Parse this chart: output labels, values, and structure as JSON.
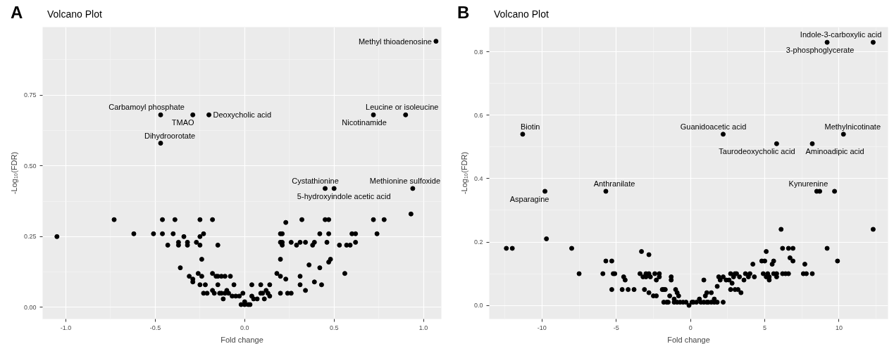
{
  "chart_data": [
    {
      "type": "scatter",
      "title": "Volcano Plot",
      "xlabel": "Fold change",
      "ylabel": "-Log₁₀(FDR)",
      "marker": "circle",
      "grid": true,
      "xlim": [
        -1.13,
        1.1
      ],
      "ylim": [
        -0.041,
        0.99
      ],
      "xticks": [
        {
          "value": -1.0,
          "label": "-1.0"
        },
        {
          "value": -0.5,
          "label": "-0.5"
        },
        {
          "value": 0.0,
          "label": "0.0"
        },
        {
          "value": 0.5,
          "label": "0.5"
        },
        {
          "value": 1.0,
          "label": "1.0"
        }
      ],
      "yticks": [
        {
          "value": 0.0,
          "label": "0.00"
        },
        {
          "value": 0.25,
          "label": "0.25"
        },
        {
          "value": 0.5,
          "label": "0.50"
        },
        {
          "value": 0.75,
          "label": "0.75"
        }
      ],
      "series": [
        {
          "color": "#000000",
          "x": [
            1.07,
            -0.47,
            -0.29,
            -0.2,
            -0.47,
            0.9,
            0.72,
            0.45,
            0.5,
            0.94,
            -1.05,
            -0.73,
            -0.62,
            -0.51,
            -0.46,
            -0.39,
            -0.46,
            -0.4,
            -0.43,
            -0.37,
            -0.37,
            -0.34,
            -0.32,
            -0.32,
            -0.36,
            -0.27,
            -0.25,
            -0.18,
            -0.25,
            -0.23,
            -0.25,
            -0.15,
            -0.24,
            -0.31,
            -0.29,
            -0.29,
            -0.26,
            -0.24,
            -0.25,
            -0.22,
            -0.23,
            -0.21,
            -0.18,
            -0.18,
            -0.16,
            -0.15,
            -0.13,
            -0.11,
            -0.15,
            -0.17,
            -0.14,
            -0.12,
            -0.13,
            -0.11,
            -0.1,
            -0.08,
            -0.06,
            -0.09,
            -0.07,
            -0.05,
            -0.03,
            -0.01,
            -0.02,
            0.0,
            0.02,
            0.03,
            0.0,
            0.04,
            0.04,
            0.05,
            0.07,
            0.09,
            0.09,
            0.1,
            0.11,
            0.12,
            0.13,
            0.14,
            0.14,
            0.18,
            0.2,
            0.2,
            0.2,
            0.21,
            0.21,
            0.21,
            0.23,
            0.2,
            0.23,
            0.2,
            0.24,
            0.26,
            0.26,
            0.29,
            0.31,
            0.32,
            0.31,
            0.31,
            0.34,
            0.34,
            0.36,
            0.38,
            0.39,
            0.39,
            0.42,
            0.42,
            0.43,
            0.45,
            0.47,
            0.46,
            0.47,
            0.47,
            0.48,
            0.53,
            0.56,
            0.57,
            0.59,
            0.6,
            0.62,
            0.62,
            0.72,
            0.74,
            0.78,
            0.93
          ],
          "values": [
            0.94,
            0.68,
            0.68,
            0.68,
            0.58,
            0.68,
            0.68,
            0.42,
            0.42,
            0.42,
            0.25,
            0.31,
            0.26,
            0.26,
            0.31,
            0.31,
            0.26,
            0.26,
            0.22,
            0.23,
            0.22,
            0.25,
            0.22,
            0.23,
            0.14,
            0.23,
            0.31,
            0.31,
            0.25,
            0.26,
            0.22,
            0.22,
            0.17,
            0.11,
            0.1,
            0.09,
            0.12,
            0.11,
            0.08,
            0.08,
            0.05,
            0.05,
            0.06,
            0.12,
            0.11,
            0.11,
            0.11,
            0.11,
            0.08,
            0.05,
            0.05,
            0.03,
            0.05,
            0.05,
            0.06,
            0.11,
            0.08,
            0.05,
            0.04,
            0.04,
            0.04,
            0.05,
            0.01,
            0.01,
            0.01,
            0.01,
            0.02,
            0.08,
            0.04,
            0.03,
            0.03,
            0.08,
            0.05,
            0.05,
            0.03,
            0.06,
            0.05,
            0.08,
            0.04,
            0.12,
            0.17,
            0.23,
            0.26,
            0.26,
            0.22,
            0.23,
            0.3,
            0.11,
            0.1,
            0.05,
            0.05,
            0.05,
            0.23,
            0.22,
            0.23,
            0.31,
            0.11,
            0.08,
            0.23,
            0.06,
            0.15,
            0.22,
            0.23,
            0.09,
            0.14,
            0.26,
            0.08,
            0.31,
            0.31,
            0.23,
            0.26,
            0.16,
            0.17,
            0.22,
            0.12,
            0.22,
            0.22,
            0.26,
            0.26,
            0.23,
            0.31,
            0.26,
            0.31,
            0.33
          ]
        }
      ],
      "annotations": [
        {
          "text": "Methyl thioadenosine",
          "x": 1.07,
          "y": 0.94
        },
        {
          "text": "Carbamoyl phosphate",
          "x": -0.47,
          "y": 0.68
        },
        {
          "text": "TMAO",
          "x": -0.29,
          "y": 0.68
        },
        {
          "text": "Deoxycholic acid",
          "x": -0.2,
          "y": 0.68
        },
        {
          "text": "Dihydroorotate",
          "x": -0.47,
          "y": 0.58
        },
        {
          "text": "Leucine or isoleucine",
          "x": 0.9,
          "y": 0.68
        },
        {
          "text": "Nicotinamide",
          "x": 0.72,
          "y": 0.68
        },
        {
          "text": "Cystathionine",
          "x": 0.45,
          "y": 0.42
        },
        {
          "text": "5-hydroxyindole acetic acid",
          "x": 0.5,
          "y": 0.42
        },
        {
          "text": "Methionine sulfoxide",
          "x": 0.94,
          "y": 0.42
        },
        "A"
      ]
    },
    {
      "type": "scatter",
      "title": "Volcano Plot",
      "xlabel": "Fold change",
      "ylabel": "-Log₁₀(FDR)",
      "marker": "circle",
      "grid": true,
      "xlim": [
        -13.55,
        13.3
      ],
      "ylim": [
        -0.043,
        0.878
      ],
      "xticks": [
        -10,
        -5,
        0,
        5,
        10
      ],
      "yticks": [
        {
          "value": 0.0,
          "label": "0.0"
        },
        {
          "value": 0.2,
          "label": "0.2"
        },
        {
          "value": 0.4,
          "label": "0.4"
        },
        {
          "value": 0.6,
          "label": "0.6"
        },
        {
          "value": 0.8,
          "label": "0.8"
        }
      ],
      "series": [
        {
          "color": "#000000",
          "x": [
            12.3,
            9.2,
            -11.3,
            2.2,
            5.8,
            8.2,
            10.3,
            -9.8,
            -5.7,
            8.5,
            8.7,
            9.7,
            -12.4,
            -12.0,
            -9.7,
            -8.0,
            -7.5,
            -5.9,
            -5.7,
            -5.3,
            -5.3,
            -5.2,
            -5.1,
            -4.6,
            -4.5,
            -4.4,
            -4.2,
            -3.8,
            -3.4,
            -3.3,
            -3.2,
            -3.1,
            -3.0,
            -3.0,
            -2.8,
            -2.8,
            -2.8,
            -2.7,
            -2.5,
            -2.4,
            -2.3,
            -2.3,
            -2.1,
            -2.1,
            -1.9,
            -1.8,
            -1.7,
            -1.8,
            -1.5,
            -1.6,
            -1.4,
            -1.3,
            -1.3,
            -1.1,
            -1.1,
            -1.0,
            -0.9,
            -0.8,
            -0.9,
            -0.7,
            -0.5,
            -0.3,
            -0.1,
            0.1,
            0.2,
            0.4,
            0.6,
            0.7,
            0.9,
            0.9,
            1.0,
            1.1,
            1.1,
            1.2,
            1.4,
            1.4,
            1.6,
            1.6,
            1.8,
            1.8,
            1.9,
            2.0,
            2.2,
            2.2,
            2.4,
            2.6,
            2.7,
            2.8,
            2.7,
            2.9,
            3.0,
            3.0,
            3.1,
            3.2,
            3.3,
            3.4,
            3.6,
            3.7,
            3.9,
            4.0,
            4.2,
            4.3,
            4.8,
            4.9,
            5.0,
            5.1,
            5.1,
            5.2,
            5.3,
            5.3,
            5.5,
            5.6,
            5.6,
            5.8,
            5.8,
            6.1,
            6.2,
            6.2,
            6.4,
            6.6,
            6.6,
            6.9,
            6.7,
            6.9,
            7.6,
            7.7,
            7.8,
            8.2,
            9.2,
            9.9,
            12.3
          ],
          "values": [
            0.83,
            0.83,
            0.54,
            0.54,
            0.51,
            0.51,
            0.54,
            0.36,
            0.36,
            0.36,
            0.36,
            0.36,
            0.18,
            0.18,
            0.21,
            0.18,
            0.1,
            0.1,
            0.14,
            0.14,
            0.05,
            0.1,
            0.1,
            0.05,
            0.09,
            0.08,
            0.05,
            0.05,
            0.1,
            0.17,
            0.09,
            0.05,
            0.1,
            0.09,
            0.1,
            0.16,
            0.04,
            0.09,
            0.03,
            0.1,
            0.08,
            0.03,
            0.1,
            0.09,
            0.05,
            0.05,
            0.05,
            0.01,
            0.01,
            0.01,
            0.03,
            0.09,
            0.08,
            0.02,
            0.01,
            0.05,
            0.04,
            0.03,
            0.01,
            0.01,
            0.01,
            0.01,
            0.0,
            0.01,
            0.01,
            0.01,
            0.02,
            0.01,
            0.01,
            0.08,
            0.03,
            0.04,
            0.01,
            0.01,
            0.04,
            0.01,
            0.02,
            0.01,
            0.06,
            0.01,
            0.09,
            0.08,
            0.09,
            0.01,
            0.08,
            0.08,
            0.1,
            0.07,
            0.05,
            0.09,
            0.1,
            0.05,
            0.1,
            0.05,
            0.09,
            0.04,
            0.08,
            0.1,
            0.09,
            0.1,
            0.13,
            0.09,
            0.14,
            0.1,
            0.14,
            0.17,
            0.09,
            0.1,
            0.08,
            0.09,
            0.13,
            0.14,
            0.1,
            0.1,
            0.09,
            0.24,
            0.18,
            0.1,
            0.1,
            0.18,
            0.1,
            0.18,
            0.15,
            0.14,
            0.1,
            0.13,
            0.1,
            0.1,
            0.18,
            0.14,
            0.24
          ]
        }
      ],
      "annotations": [
        {
          "text": "Indole-3-carboxylic acid",
          "x": 12.3,
          "y": 0.83
        },
        {
          "text": "3-phosphoglycerate",
          "x": 9.2,
          "y": 0.83
        },
        {
          "text": "Biotin",
          "x": -11.3,
          "y": 0.54
        },
        {
          "text": "Guanidoacetic acid",
          "x": 2.2,
          "y": 0.54
        },
        {
          "text": "Taurodeoxycholic acid",
          "x": 5.8,
          "y": 0.51
        },
        {
          "text": "Aminoadipic acid",
          "x": 8.2,
          "y": 0.51
        },
        {
          "text": "Methylnicotinate",
          "x": 10.3,
          "y": 0.54
        },
        {
          "text": "Asparagine",
          "x": -9.8,
          "y": 0.36
        },
        {
          "text": "Anthranilate",
          "x": -5.7,
          "y": 0.36
        },
        {
          "text": "Kynurenine",
          "x": 8.6,
          "y": 0.36
        },
        "B"
      ]
    }
  ]
}
